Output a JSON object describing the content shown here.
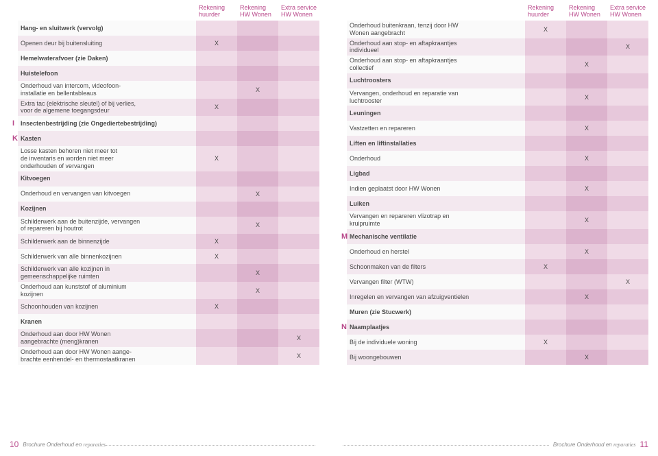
{
  "columns": {
    "col1": "Rekening\nhuurder",
    "col2": "Rekening\nHW Wonen",
    "col3": "Extra service\nHW Wonen"
  },
  "left": [
    {
      "letter": "",
      "label": "Hang- en sluitwerk (vervolg)",
      "heading": true,
      "m": [
        "",
        "",
        ""
      ]
    },
    {
      "letter": "",
      "label": "Openen deur bij buitensluiting",
      "m": [
        "X",
        "",
        ""
      ]
    },
    {
      "letter": "",
      "label": "Hemelwaterafvoer (zie Daken)",
      "heading": true,
      "m": [
        "",
        "",
        ""
      ]
    },
    {
      "letter": "",
      "label": "Huistelefoon",
      "heading": true,
      "m": [
        "",
        "",
        ""
      ]
    },
    {
      "letter": "",
      "label": "Onderhoud van intercom, videofoon-\ninstallatie en bellentableaus",
      "m": [
        "",
        "X",
        ""
      ]
    },
    {
      "letter": "",
      "label": "Extra tac (elektrische sleutel) of bij verlies,\nvoor de algemene toegangsdeur",
      "m": [
        "X",
        "",
        ""
      ]
    },
    {
      "letter": "I",
      "label": "Insectenbestrijding (zie Ongediertebestrijding)",
      "heading": true,
      "m": [
        "",
        "",
        ""
      ]
    },
    {
      "letter": "K",
      "label": "Kasten",
      "heading": true,
      "m": [
        "",
        "",
        ""
      ]
    },
    {
      "letter": "",
      "label": "Losse kasten behoren niet meer tot\nde inventaris en worden niet meer\nonderhouden of vervangen",
      "m": [
        "X",
        "",
        ""
      ]
    },
    {
      "letter": "",
      "label": "Kitvoegen",
      "heading": true,
      "m": [
        "",
        "",
        ""
      ]
    },
    {
      "letter": "",
      "label": "Onderhoud en vervangen van kitvoegen",
      "m": [
        "",
        "X",
        ""
      ]
    },
    {
      "letter": "",
      "label": "Kozijnen",
      "heading": true,
      "m": [
        "",
        "",
        ""
      ]
    },
    {
      "letter": "",
      "label": "Schilderwerk aan de buitenzijde, vervangen\nof repareren bij houtrot",
      "m": [
        "",
        "X",
        ""
      ]
    },
    {
      "letter": "",
      "label": "Schilderwerk aan de binnenzijde",
      "m": [
        "X",
        "",
        ""
      ]
    },
    {
      "letter": "",
      "label": "Schilderwerk van alle binnenkozijnen",
      "m": [
        "X",
        "",
        ""
      ]
    },
    {
      "letter": "",
      "label": "Schilderwerk van alle kozijnen in\ngemeenschappelijke ruimten",
      "m": [
        "",
        "X",
        ""
      ]
    },
    {
      "letter": "",
      "label": "Onderhoud aan kunststof of aluminium\nkozijnen",
      "m": [
        "",
        "X",
        ""
      ]
    },
    {
      "letter": "",
      "label": "Schoonhouden van kozijnen",
      "m": [
        "X",
        "",
        ""
      ]
    },
    {
      "letter": "",
      "label": "Kranen",
      "heading": true,
      "m": [
        "",
        "",
        ""
      ]
    },
    {
      "letter": "",
      "label": "Onderhoud aan door HW Wonen\naangebrachte (meng)kranen",
      "m": [
        "",
        "",
        "X"
      ]
    },
    {
      "letter": "",
      "label": "Onderhoud aan door HW Wonen aange-\nbrachte eenhendel- en thermostaatkranen",
      "m": [
        "",
        "",
        "X"
      ]
    }
  ],
  "right": [
    {
      "letter": "",
      "label": "Onderhoud buitenkraan, tenzij door HW\nWonen aangebracht",
      "m": [
        "X",
        "",
        ""
      ]
    },
    {
      "letter": "",
      "label": "Onderhoud aan stop- en aftapkraantjes\nindividueel",
      "m": [
        "",
        "",
        "X"
      ]
    },
    {
      "letter": "",
      "label": "Onderhoud aan stop- en aftapkraantjes\ncollectief",
      "m": [
        "",
        "X",
        ""
      ]
    },
    {
      "letter": "",
      "label": "Luchtroosters",
      "heading": true,
      "m": [
        "",
        "",
        ""
      ]
    },
    {
      "letter": "",
      "label": "Vervangen, onderhoud en reparatie van\nluchtrooster",
      "m": [
        "",
        "X",
        ""
      ]
    },
    {
      "letter": "",
      "label": "Leuningen",
      "heading": true,
      "m": [
        "",
        "",
        ""
      ]
    },
    {
      "letter": "",
      "label": "Vastzetten en repareren",
      "m": [
        "",
        "X",
        ""
      ]
    },
    {
      "letter": "",
      "label": "Liften en liftinstallaties",
      "heading": true,
      "m": [
        "",
        "",
        ""
      ]
    },
    {
      "letter": "",
      "label": "Onderhoud",
      "m": [
        "",
        "X",
        ""
      ]
    },
    {
      "letter": "",
      "label": "Ligbad",
      "heading": true,
      "m": [
        "",
        "",
        ""
      ]
    },
    {
      "letter": "",
      "label": "Indien geplaatst door HW Wonen",
      "m": [
        "",
        "X",
        ""
      ]
    },
    {
      "letter": "",
      "label": "Luiken",
      "heading": true,
      "m": [
        "",
        "",
        ""
      ]
    },
    {
      "letter": "",
      "label": "Vervangen en repareren vlizotrap en\nkruipruimte",
      "m": [
        "",
        "X",
        ""
      ]
    },
    {
      "letter": "M",
      "label": "Mechanische ventilatie",
      "heading": true,
      "m": [
        "",
        "",
        ""
      ]
    },
    {
      "letter": "",
      "label": "Onderhoud en herstel",
      "m": [
        "",
        "X",
        ""
      ]
    },
    {
      "letter": "",
      "label": "Schoonmaken van de filters",
      "m": [
        "X",
        "",
        ""
      ]
    },
    {
      "letter": "",
      "label": "Vervangen filter (WTW)",
      "m": [
        "",
        "",
        "X"
      ]
    },
    {
      "letter": "",
      "label": "Inregelen en vervangen van afzuigventielen",
      "m": [
        "",
        "X",
        ""
      ]
    },
    {
      "letter": "",
      "label": "Muren (zie Stucwerk)",
      "heading": true,
      "m": [
        "",
        "",
        ""
      ]
    },
    {
      "letter": "N",
      "label": "Naamplaatjes",
      "heading": true,
      "m": [
        "",
        "",
        ""
      ]
    },
    {
      "letter": "",
      "label": "Bij de individuele woning",
      "m": [
        "X",
        "",
        ""
      ]
    },
    {
      "letter": "",
      "label": "Bij woongebouwen",
      "m": [
        "",
        "X",
        ""
      ]
    }
  ],
  "footer": {
    "leftNum": "10",
    "rightNum": "11",
    "caption_prefix": "Brochure Onderhoud en ",
    "caption_italic": "reparaties"
  }
}
